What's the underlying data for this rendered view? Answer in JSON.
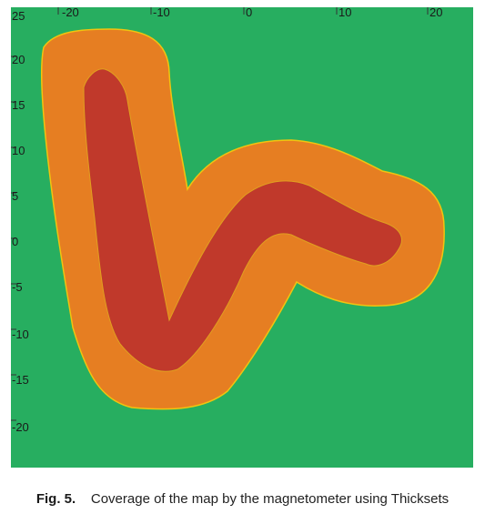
{
  "figure": {
    "x_ticks": [
      "-20",
      "-10",
      "0",
      "10",
      "20"
    ],
    "y_ticks": [
      "25",
      "20",
      "15",
      "10",
      "5",
      "0",
      "-5",
      "-10",
      "-15",
      "-20"
    ],
    "colors": {
      "background": "#27ae60",
      "outer_coverage": "#e67e22",
      "inner_path": "#c0392b",
      "boundary": "#f1c40f"
    }
  },
  "caption": {
    "label": "Fig. 5.",
    "text": "Coverage of the map by the magnetometer using Thicksets"
  }
}
